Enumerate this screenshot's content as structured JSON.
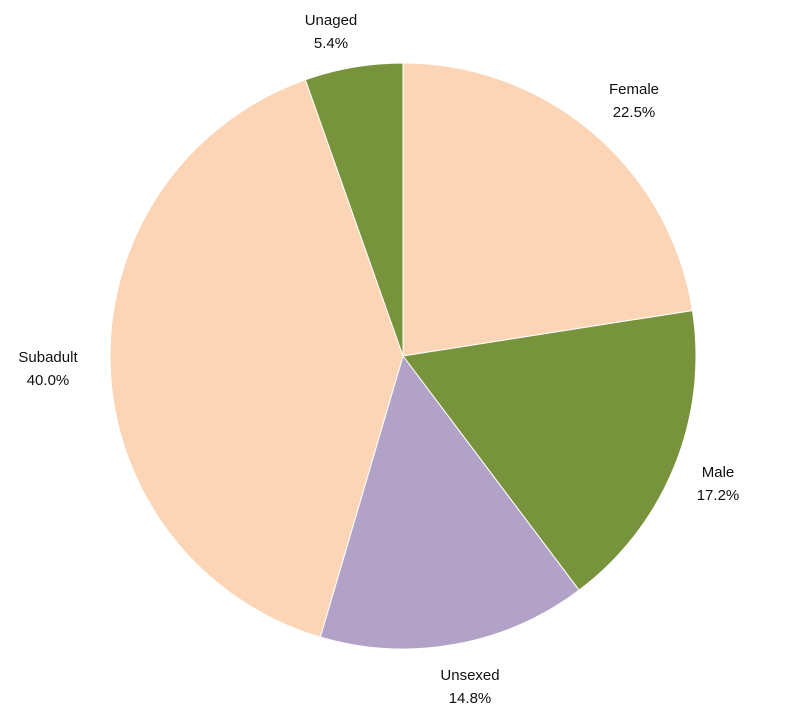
{
  "chart_data": {
    "type": "pie",
    "title": "",
    "start": "top",
    "direction": "clockwise",
    "slices": [
      {
        "label": "Female",
        "value": 22.5,
        "value_text": "22.5%",
        "color": "#FBD5B5"
      },
      {
        "label": "Male",
        "value": 17.2,
        "value_text": "17.2%",
        "color": "#77933C"
      },
      {
        "label": "Unsexed",
        "value": 14.8,
        "value_text": "14.8%",
        "color": "#B3A2C7"
      },
      {
        "label": "Subadult",
        "value": 40.0,
        "value_text": "40.0%",
        "color": "#FBD5B5"
      },
      {
        "label": "Unaged",
        "value": 5.4,
        "value_text": "5.4%",
        "color": "#77933C"
      }
    ]
  }
}
